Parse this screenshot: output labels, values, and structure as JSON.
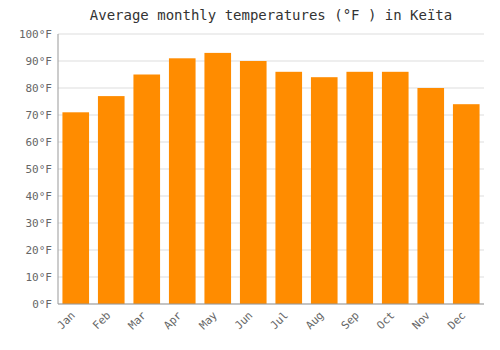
{
  "chart_data": {
    "type": "bar",
    "title": "Average monthly temperatures (°F ) in Keïta",
    "categories": [
      "Jan",
      "Feb",
      "Mar",
      "Apr",
      "May",
      "Jun",
      "Jul",
      "Aug",
      "Sep",
      "Oct",
      "Nov",
      "Dec"
    ],
    "values": [
      71,
      77,
      85,
      91,
      93,
      90,
      86,
      84,
      86,
      86,
      80,
      74
    ],
    "color": "#FF8C00",
    "ylim": [
      0,
      100
    ],
    "yticks": [
      {
        "value": 0,
        "label": "0°F"
      },
      {
        "value": 10,
        "label": "10°F"
      },
      {
        "value": 20,
        "label": "20°F"
      },
      {
        "value": 30,
        "label": "30°F"
      },
      {
        "value": 40,
        "label": "40°F"
      },
      {
        "value": 50,
        "label": "50°F"
      },
      {
        "value": 60,
        "label": "60°F"
      },
      {
        "value": 70,
        "label": "70°F"
      },
      {
        "value": 80,
        "label": "80°F"
      },
      {
        "value": 90,
        "label": "90°F"
      },
      {
        "value": 100,
        "label": "100°F"
      }
    ],
    "grid": true
  }
}
